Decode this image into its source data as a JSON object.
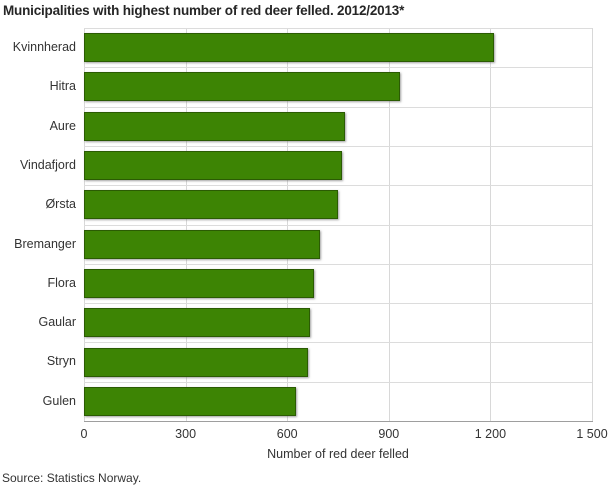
{
  "title": "Municipalities with highest number of red deer felled. 2012/2013*",
  "source": "Source: Statistics Norway.",
  "colors": {
    "bar_fill": "#3d8404",
    "bar_border": "#2b5b03",
    "grid_line": "#d8d8d8",
    "axis_line": "#9e9e9e",
    "text": "#333333",
    "title_text": "#262626",
    "background": "#ffffff"
  },
  "chart_data": {
    "type": "bar",
    "orientation": "horizontal",
    "title": "Municipalities with highest number of red deer felled. 2012/2013*",
    "categories": [
      "Kvinnherad",
      "Hitra",
      "Aure",
      "Vindafjord",
      "Ørsta",
      "Bremanger",
      "Flora",
      "Gaular",
      "Stryn",
      "Gulen"
    ],
    "values": [
      1210,
      933,
      772,
      762,
      750,
      697,
      678,
      668,
      661,
      626
    ],
    "xlabel": "Number of red deer felled",
    "ylabel": "",
    "xlim": [
      0,
      1500
    ],
    "xticks": [
      0,
      300,
      600,
      900,
      1200,
      1500
    ],
    "xtick_labels": [
      "0",
      "300",
      "600",
      "900",
      "1 200",
      "1 500"
    ],
    "grid": true,
    "legend": "none"
  }
}
